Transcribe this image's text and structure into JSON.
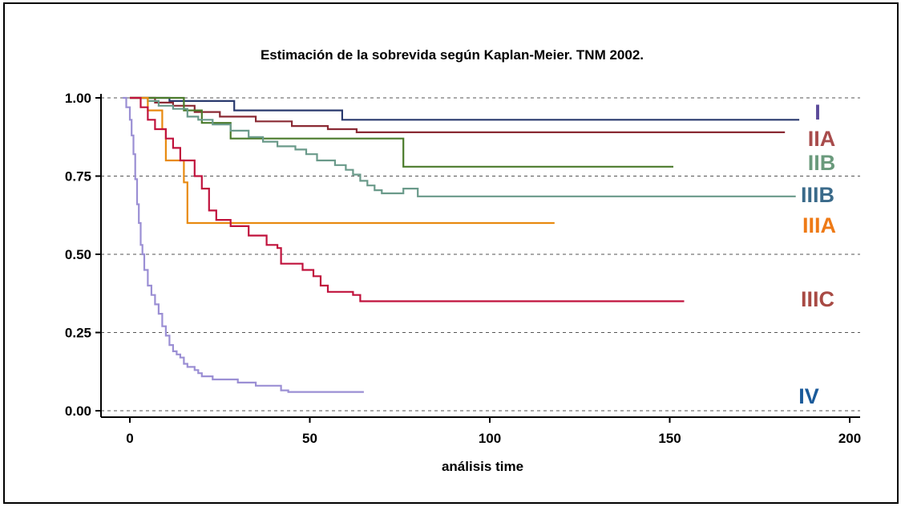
{
  "chart_data": {
    "type": "line",
    "title": "Estimación de la sobrevida según Kaplan-Meier. TNM 2002.",
    "xlabel": "análisis time",
    "ylabel": "",
    "xlim": [
      -8,
      202
    ],
    "ylim": [
      -0.015,
      1.0
    ],
    "x_ticks": [
      0,
      50,
      100,
      150,
      200
    ],
    "y_ticks": [
      0.0,
      0.25,
      0.5,
      0.75,
      1.0
    ],
    "x_tick_labels": [
      "0",
      "50",
      "100",
      "150",
      "200"
    ],
    "y_tick_labels": [
      "0.00",
      "0.25",
      "0.50",
      "0.75",
      "1.00"
    ],
    "grid": "horizontal dashed",
    "series": [
      {
        "name": "I",
        "color": "#2a3a6e",
        "label_color": "#5b4a9a",
        "steps": [
          [
            0,
            1.0
          ],
          [
            11,
            0.99
          ],
          [
            29,
            0.96
          ],
          [
            59,
            0.93
          ],
          [
            186,
            0.93
          ]
        ]
      },
      {
        "name": "IIA",
        "color": "#8a2a34",
        "label_color": "#a84c4c",
        "steps": [
          [
            0,
            1.0
          ],
          [
            7,
            0.985
          ],
          [
            12,
            0.975
          ],
          [
            18,
            0.955
          ],
          [
            25,
            0.94
          ],
          [
            35,
            0.925
          ],
          [
            45,
            0.91
          ],
          [
            55,
            0.9
          ],
          [
            63,
            0.89
          ],
          [
            182,
            0.89
          ]
        ]
      },
      {
        "name": "IIB",
        "color": "#4a7a2a",
        "label_color": "#6a9a7c",
        "steps": [
          [
            0,
            1.0
          ],
          [
            15,
            0.96
          ],
          [
            20,
            0.92
          ],
          [
            28,
            0.87
          ],
          [
            76,
            0.87
          ],
          [
            76,
            0.78
          ],
          [
            151,
            0.78
          ]
        ]
      },
      {
        "name": "IIIB",
        "color": "#6a9a8a",
        "label_color": "#3a6a8a",
        "steps": [
          [
            0,
            1.0
          ],
          [
            5,
            0.99
          ],
          [
            8,
            0.975
          ],
          [
            12,
            0.965
          ],
          [
            16,
            0.94
          ],
          [
            19,
            0.93
          ],
          [
            23,
            0.915
          ],
          [
            28,
            0.895
          ],
          [
            33,
            0.875
          ],
          [
            37,
            0.86
          ],
          [
            41,
            0.845
          ],
          [
            46,
            0.835
          ],
          [
            49,
            0.82
          ],
          [
            52,
            0.8
          ],
          [
            57,
            0.785
          ],
          [
            60,
            0.77
          ],
          [
            62,
            0.755
          ],
          [
            64,
            0.735
          ],
          [
            66,
            0.72
          ],
          [
            68,
            0.705
          ],
          [
            70,
            0.695
          ],
          [
            76,
            0.71
          ],
          [
            80,
            0.685
          ],
          [
            185,
            0.685
          ]
        ]
      },
      {
        "name": "IIIA",
        "color": "#e88a10",
        "label_color": "#ee7a16",
        "steps": [
          [
            0,
            1.0
          ],
          [
            5,
            0.96
          ],
          [
            9,
            0.9
          ],
          [
            10,
            0.8
          ],
          [
            14,
            0.8
          ],
          [
            15,
            0.73
          ],
          [
            16,
            0.6
          ],
          [
            118,
            0.6
          ]
        ]
      },
      {
        "name": "IIIC",
        "color": "#c0123c",
        "label_color": "#a84a44",
        "steps": [
          [
            0,
            1.0
          ],
          [
            3,
            0.97
          ],
          [
            5,
            0.93
          ],
          [
            7,
            0.9
          ],
          [
            10,
            0.87
          ],
          [
            12,
            0.84
          ],
          [
            14,
            0.8
          ],
          [
            16,
            0.8
          ],
          [
            18,
            0.75
          ],
          [
            20,
            0.71
          ],
          [
            22,
            0.64
          ],
          [
            24,
            0.61
          ],
          [
            28,
            0.59
          ],
          [
            33,
            0.56
          ],
          [
            38,
            0.53
          ],
          [
            41,
            0.52
          ],
          [
            42,
            0.47
          ],
          [
            48,
            0.45
          ],
          [
            51,
            0.43
          ],
          [
            53,
            0.4
          ],
          [
            55,
            0.38
          ],
          [
            62,
            0.37
          ],
          [
            64,
            0.35
          ],
          [
            154,
            0.35
          ]
        ]
      },
      {
        "name": "IV",
        "color": "#9b8fd4",
        "label_color": "#1a5a9a",
        "steps": [
          [
            -2,
            1.0
          ],
          [
            -1,
            0.97
          ],
          [
            0,
            0.93
          ],
          [
            0.5,
            0.88
          ],
          [
            1,
            0.82
          ],
          [
            1.5,
            0.74
          ],
          [
            2,
            0.66
          ],
          [
            2.5,
            0.6
          ],
          [
            3,
            0.53
          ],
          [
            3.5,
            0.5
          ],
          [
            4,
            0.45
          ],
          [
            5,
            0.4
          ],
          [
            6,
            0.37
          ],
          [
            7,
            0.34
          ],
          [
            8,
            0.31
          ],
          [
            9,
            0.27
          ],
          [
            10,
            0.24
          ],
          [
            11,
            0.21
          ],
          [
            12,
            0.19
          ],
          [
            13,
            0.18
          ],
          [
            14,
            0.17
          ],
          [
            15,
            0.15
          ],
          [
            16,
            0.14
          ],
          [
            18,
            0.13
          ],
          [
            19,
            0.12
          ],
          [
            20,
            0.11
          ],
          [
            23,
            0.1
          ],
          [
            30,
            0.09
          ],
          [
            35,
            0.08
          ],
          [
            42,
            0.065
          ],
          [
            44,
            0.06
          ],
          [
            65,
            0.06
          ]
        ]
      }
    ]
  }
}
